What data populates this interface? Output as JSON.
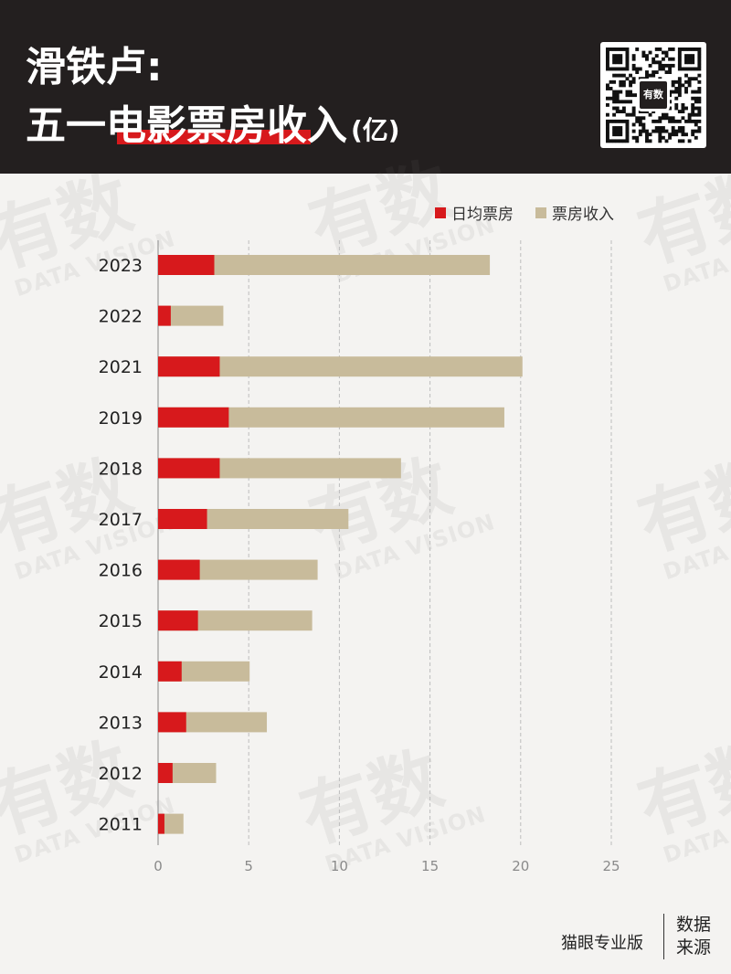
{
  "header": {
    "title_line1": "滑铁卢:",
    "title_line2": "五一电影票房收入",
    "title_unit": "(亿)",
    "qr_badge_text": "有数"
  },
  "watermark": {
    "big": "有数",
    "small": "DATA VISION"
  },
  "legend": {
    "items": [
      {
        "label": "日均票房",
        "color": "#d7191c"
      },
      {
        "label": "票房收入",
        "color": "#c8bb9b"
      }
    ]
  },
  "chart_data": {
    "type": "bar",
    "orientation": "horizontal",
    "stacked": "overlay",
    "categories": [
      "2023",
      "2022",
      "2021",
      "2019",
      "2018",
      "2017",
      "2016",
      "2015",
      "2014",
      "2013",
      "2012",
      "2011"
    ],
    "series": [
      {
        "name": "日均票房",
        "color": "#d7191c",
        "values": [
          3.1,
          0.7,
          3.4,
          3.9,
          3.4,
          2.7,
          2.3,
          2.2,
          1.3,
          1.55,
          0.8,
          0.35
        ]
      },
      {
        "name": "票房收入",
        "color": "#c8bb9b",
        "values": [
          18.3,
          3.6,
          20.1,
          19.1,
          13.4,
          10.5,
          8.8,
          8.5,
          5.05,
          6.0,
          3.2,
          1.4
        ]
      }
    ],
    "xlim": [
      0,
      25
    ],
    "xticks": [
      0,
      5,
      10,
      15,
      20,
      25
    ],
    "grid": "vertical dashed",
    "legend_position": "top-right"
  },
  "source": {
    "label": "数据\n来源",
    "label_line1": "数据",
    "label_line2": "来源",
    "value": "猫眼专业版"
  }
}
